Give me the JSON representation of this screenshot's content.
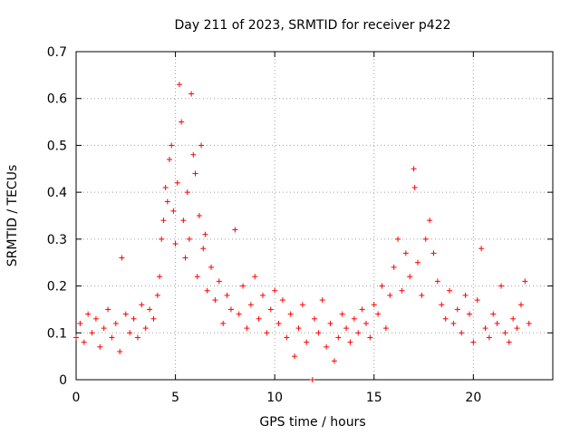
{
  "chart_data": {
    "type": "scatter",
    "title": "Day 211 of 2023, SRMTID for receiver p422",
    "xlabel": "GPS time / hours",
    "ylabel": "SRMTID / TECUs",
    "xlim": [
      0,
      24
    ],
    "ylim": [
      0,
      0.7
    ],
    "xticks": [
      0,
      5,
      10,
      15,
      20
    ],
    "yticks": [
      0,
      0.1,
      0.2,
      0.3,
      0.4,
      0.5,
      0.6,
      0.7
    ],
    "xtick_labels": [
      "0",
      "5",
      "10",
      "15",
      "20"
    ],
    "ytick_labels": [
      "0",
      "0.1",
      "0.2",
      "0.3",
      "0.4",
      "0.5",
      "0.6",
      "0.7"
    ],
    "grid": true,
    "marker": "+",
    "color": "#ff0000",
    "series": [
      {
        "name": "SRMTID p422",
        "x": [
          0.0,
          0.2,
          0.4,
          0.6,
          0.8,
          1.0,
          1.2,
          1.4,
          1.6,
          1.8,
          2.0,
          2.2,
          2.3,
          2.5,
          2.7,
          2.9,
          3.1,
          3.3,
          3.5,
          3.7,
          3.9,
          4.1,
          4.2,
          4.3,
          4.4,
          4.5,
          4.6,
          4.7,
          4.8,
          4.9,
          5.0,
          5.1,
          5.2,
          5.3,
          5.4,
          5.5,
          5.6,
          5.7,
          5.8,
          5.9,
          6.0,
          6.1,
          6.2,
          6.3,
          6.4,
          6.5,
          6.6,
          6.8,
          7.0,
          7.2,
          7.4,
          7.6,
          7.8,
          8.0,
          8.2,
          8.4,
          8.6,
          8.8,
          9.0,
          9.2,
          9.4,
          9.6,
          9.8,
          10.0,
          10.2,
          10.4,
          10.6,
          10.8,
          11.0,
          11.2,
          11.4,
          11.6,
          11.9,
          12.0,
          12.2,
          12.4,
          12.6,
          12.8,
          13.0,
          13.2,
          13.4,
          13.6,
          13.8,
          14.0,
          14.2,
          14.4,
          14.6,
          14.8,
          15.0,
          15.2,
          15.4,
          15.6,
          15.8,
          16.0,
          16.2,
          16.4,
          16.6,
          16.8,
          17.0,
          17.05,
          17.2,
          17.4,
          17.6,
          17.8,
          18.0,
          18.2,
          18.4,
          18.6,
          18.8,
          19.0,
          19.2,
          19.4,
          19.6,
          19.8,
          20.0,
          20.2,
          20.4,
          20.6,
          20.8,
          21.0,
          21.2,
          21.4,
          21.6,
          21.8,
          22.0,
          22.2,
          22.4,
          22.6,
          22.8
        ],
        "y": [
          0.09,
          0.12,
          0.08,
          0.14,
          0.1,
          0.13,
          0.07,
          0.11,
          0.15,
          0.09,
          0.12,
          0.06,
          0.26,
          0.14,
          0.1,
          0.13,
          0.09,
          0.16,
          0.11,
          0.15,
          0.13,
          0.18,
          0.22,
          0.3,
          0.34,
          0.41,
          0.38,
          0.47,
          0.5,
          0.36,
          0.29,
          0.42,
          0.63,
          0.55,
          0.34,
          0.26,
          0.4,
          0.3,
          0.61,
          0.48,
          0.44,
          0.22,
          0.35,
          0.5,
          0.28,
          0.31,
          0.19,
          0.24,
          0.17,
          0.21,
          0.12,
          0.18,
          0.15,
          0.32,
          0.14,
          0.2,
          0.11,
          0.16,
          0.22,
          0.13,
          0.18,
          0.1,
          0.15,
          0.19,
          0.12,
          0.17,
          0.09,
          0.14,
          0.05,
          0.11,
          0.16,
          0.08,
          0.0,
          0.13,
          0.1,
          0.17,
          0.07,
          0.12,
          0.04,
          0.09,
          0.14,
          0.11,
          0.08,
          0.13,
          0.1,
          0.15,
          0.12,
          0.09,
          0.16,
          0.14,
          0.2,
          0.11,
          0.18,
          0.24,
          0.3,
          0.19,
          0.27,
          0.22,
          0.45,
          0.41,
          0.25,
          0.18,
          0.3,
          0.34,
          0.27,
          0.21,
          0.16,
          0.13,
          0.19,
          0.12,
          0.15,
          0.1,
          0.18,
          0.14,
          0.08,
          0.17,
          0.28,
          0.11,
          0.09,
          0.14,
          0.12,
          0.2,
          0.1,
          0.08,
          0.13,
          0.11,
          0.16,
          0.21,
          0.12
        ]
      }
    ]
  }
}
